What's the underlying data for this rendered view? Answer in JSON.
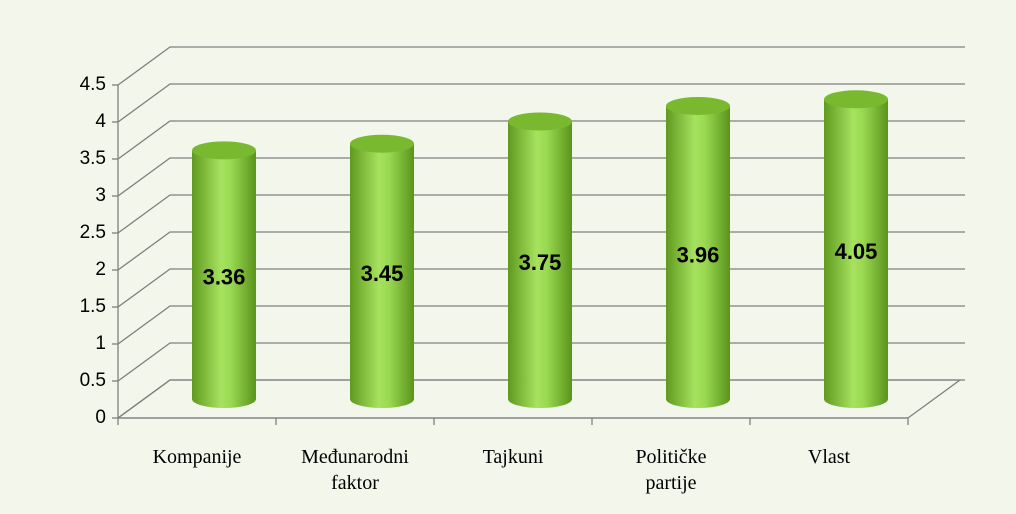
{
  "chart_data": {
    "type": "bar3d",
    "categories": [
      "Kompanije",
      "Međunarodni faktor",
      "Tajkuni",
      "Političke partije",
      "Vlast"
    ],
    "values": [
      3.36,
      3.45,
      3.75,
      3.96,
      4.05
    ],
    "color": "#8ccf40",
    "ylim": [
      0,
      4.5
    ],
    "yticks": [
      0,
      0.5,
      1,
      1.5,
      2,
      2.5,
      3,
      3.5,
      4,
      4.5
    ],
    "grid": true
  }
}
